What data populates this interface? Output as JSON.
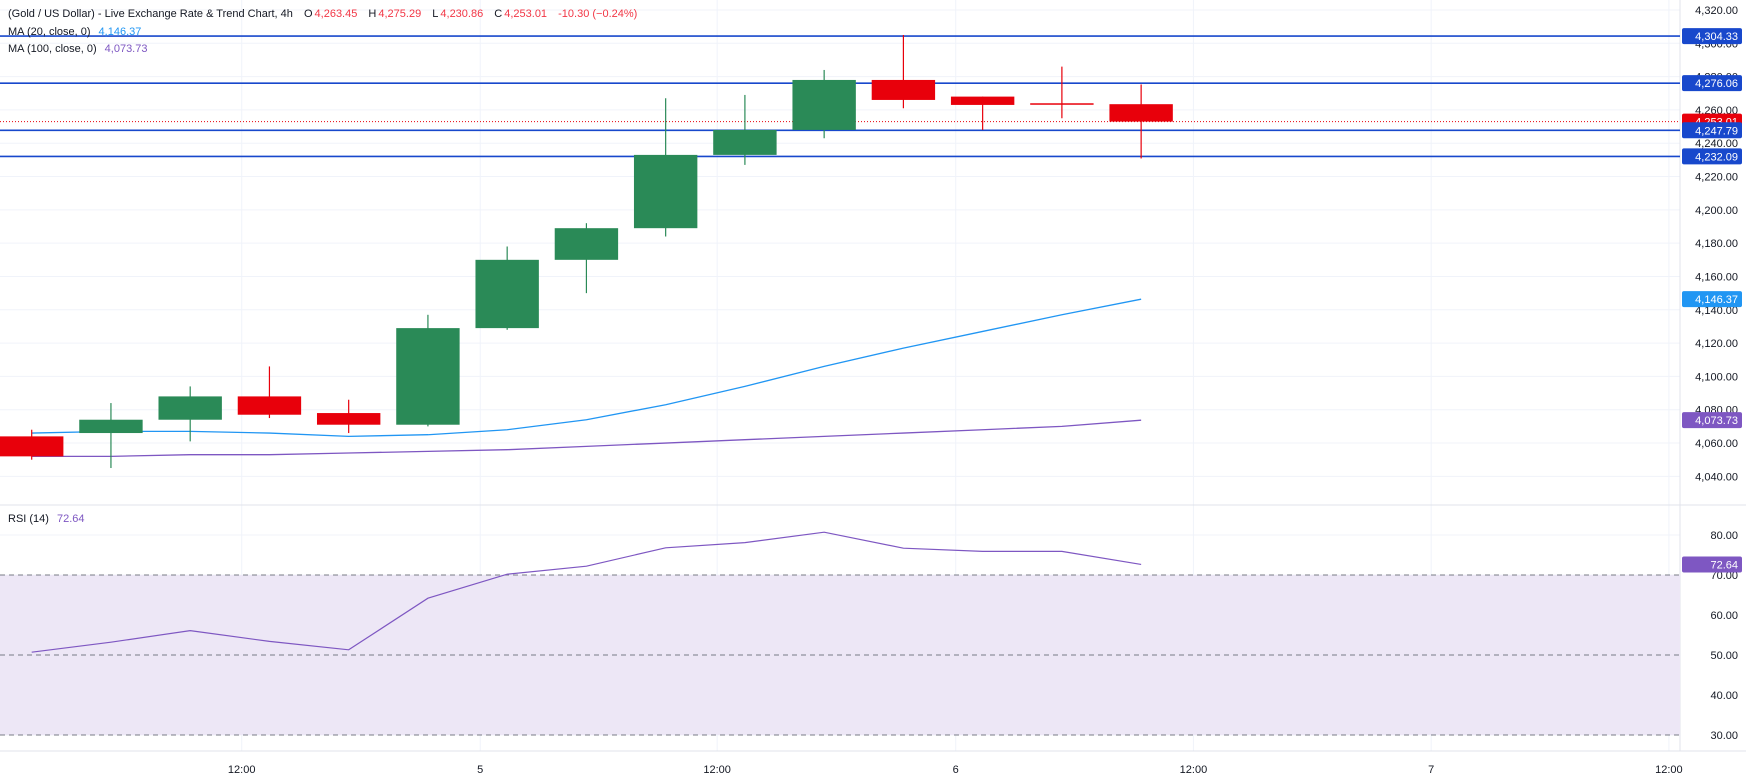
{
  "legend": {
    "symbol": "(Gold / US Dollar) - Live Exchange Rate & Trend Chart, 4h",
    "open_label": "O",
    "open": "4,263.45",
    "high_label": "H",
    "high": "4,275.29",
    "low_label": "L",
    "low": "4,230.86",
    "close_label": "C",
    "close": "4,253.01",
    "change": "-10.30 (−0.24%)",
    "ma20_label": "MA (20, close, 0)",
    "ma20_value": "4,146.37",
    "ma100_label": "MA (100, close, 0)",
    "ma100_value": "4,073.73",
    "rsi_label": "RSI (14)",
    "rsi_value": "72.64"
  },
  "colors": {
    "up": "#2a8a57",
    "down": "#e8000b",
    "ma20": "#2196f3",
    "ma100": "#7e57c2",
    "hline": "#1848cc",
    "rsi": "#7e57c2",
    "rsi_band": "#ede7f6",
    "grid": "#f0f3fa",
    "text": "#131722"
  },
  "chart_data": {
    "type": "candlestick",
    "title": "(Gold / US Dollar) - Live Exchange Rate & Trend Chart, 4h",
    "price_axis": {
      "range": [
        4024,
        4326
      ],
      "ticks": [
        "4,040.00",
        "4,060.00",
        "4,080.00",
        "4,100.00",
        "4,120.00",
        "4,140.00",
        "4,160.00",
        "4,180.00",
        "4,200.00",
        "4,220.00",
        "4,240.00",
        "4,260.00",
        "4,280.00",
        "4,300.00",
        "4,320.00"
      ]
    },
    "time_axis": {
      "bar_range": [
        -0.4,
        20.8
      ],
      "labels": [
        {
          "text": "12:00",
          "bar": 2.65
        },
        {
          "text": "5",
          "bar": 5.66
        },
        {
          "text": "12:00",
          "bar": 8.65
        },
        {
          "text": "6",
          "bar": 11.66
        },
        {
          "text": "12:00",
          "bar": 14.66
        },
        {
          "text": "7",
          "bar": 17.66
        },
        {
          "text": "12:00",
          "bar": 20.66
        }
      ]
    },
    "candles": [
      {
        "o": 4064,
        "h": 4068,
        "l": 4050,
        "c": 4052
      },
      {
        "o": 4066,
        "h": 4084,
        "l": 4045,
        "c": 4074
      },
      {
        "o": 4074,
        "h": 4094,
        "l": 4061,
        "c": 4088
      },
      {
        "o": 4088,
        "h": 4106,
        "l": 4075,
        "c": 4077
      },
      {
        "o": 4078,
        "h": 4086,
        "l": 4066,
        "c": 4071
      },
      {
        "o": 4071,
        "h": 4137,
        "l": 4070,
        "c": 4129
      },
      {
        "o": 4129,
        "h": 4178,
        "l": 4128,
        "c": 4170
      },
      {
        "o": 4170,
        "h": 4192,
        "l": 4150,
        "c": 4189
      },
      {
        "o": 4189,
        "h": 4267,
        "l": 4184,
        "c": 4233
      },
      {
        "o": 4233,
        "h": 4269,
        "l": 4227,
        "c": 4248
      },
      {
        "o": 4248,
        "h": 4284,
        "l": 4243,
        "c": 4278
      },
      {
        "o": 4278,
        "h": 4305,
        "l": 4261,
        "c": 4266
      },
      {
        "o": 4268,
        "h": 4268,
        "l": 4248,
        "c": 4263
      },
      {
        "o": 4264,
        "h": 4286,
        "l": 4255,
        "c": 4263.45
      },
      {
        "o": 4263.45,
        "h": 4275.29,
        "l": 4230.86,
        "c": 4253.01
      }
    ],
    "ma20": {
      "name": "MA (20, close, 0)",
      "values": [
        4066,
        4067,
        4067,
        4066,
        4064,
        4065,
        4068,
        4074,
        4083,
        4094,
        4106,
        4117,
        4127,
        4137,
        4146.37
      ]
    },
    "ma100": {
      "name": "MA (100, close, 0)",
      "values": [
        4052,
        4052,
        4053,
        4053,
        4054,
        4055,
        4056,
        4058,
        4060,
        4062,
        4064,
        4066,
        4068,
        4070,
        4073.73
      ]
    },
    "horizontal_lines": [
      4304.33,
      4276.06,
      4247.79,
      4232.09
    ],
    "last_price": 4253.01,
    "price_tags": [
      {
        "text": "4,304.33",
        "value": 4304.33,
        "kind": "hline"
      },
      {
        "text": "4,276.06",
        "value": 4276.06,
        "kind": "hline"
      },
      {
        "text": "4,253.01",
        "value": 4253.01,
        "kind": "last"
      },
      {
        "text": "4,247.79",
        "value": 4247.79,
        "kind": "hline"
      },
      {
        "text": "4,232.09",
        "value": 4232.09,
        "kind": "hline"
      },
      {
        "text": "4,146.37",
        "value": 4146.37,
        "kind": "ma20"
      },
      {
        "text": "4,073.73",
        "value": 4073.73,
        "kind": "ma100"
      }
    ],
    "rsi": {
      "name": "RSI (14)",
      "range": [
        26,
        87
      ],
      "ticks": [
        "30.00",
        "40.00",
        "50.00",
        "60.00",
        "70.00",
        "80.00"
      ],
      "levels": {
        "upper": 70,
        "middle": 50,
        "lower": 30
      },
      "values": [
        50.7,
        53.2,
        56.1,
        53.4,
        51.3,
        64.2,
        70.2,
        72.2,
        76.8,
        78.1,
        80.7,
        76.7,
        75.9,
        75.9,
        72.64
      ],
      "last_text": "72.64"
    }
  }
}
